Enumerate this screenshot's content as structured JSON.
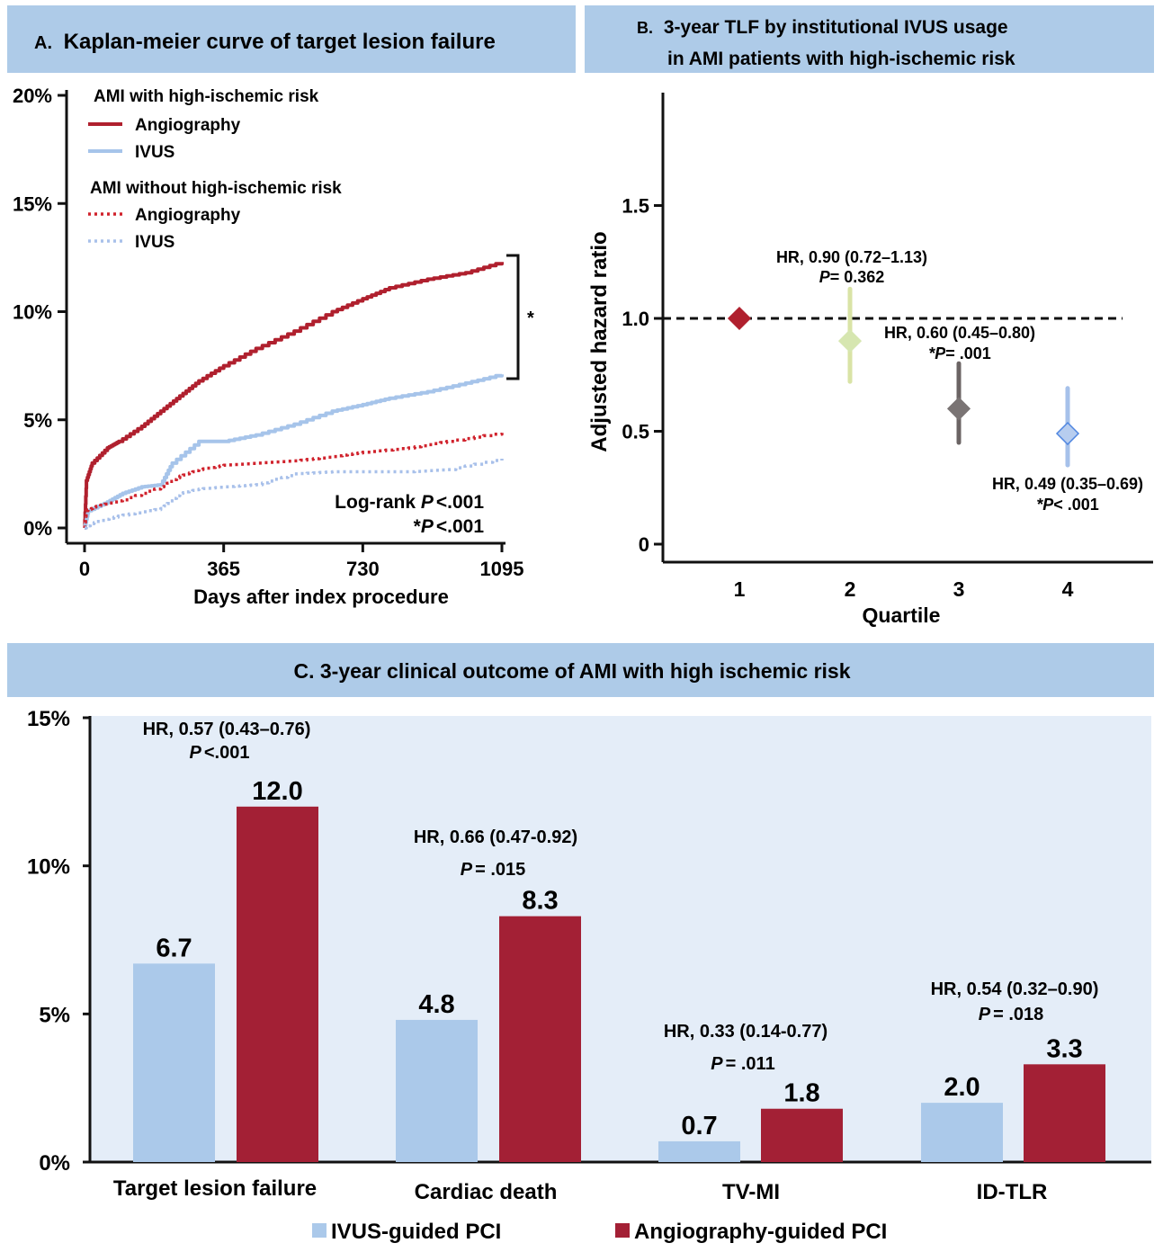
{
  "panel_a": {
    "header": "Kaplan-meier curve of target lesion failure",
    "header_letter": "A.",
    "colors": {
      "header_bg": "#aecbe8",
      "angio": "#b0202e",
      "ivus": "#a6c4ea",
      "angio_dotted": "#d0222c",
      "ivus_dotted": "#a8c0ea"
    },
    "legend": {
      "group1_title": "AMI with high-ischemic risk",
      "group1_items": [
        "Angiography",
        "IVUS"
      ],
      "group2_title": "AMI without high-ischemic risk",
      "group2_items": [
        "Angiography",
        "IVUS"
      ]
    },
    "logrank_label": "Log-rank ",
    "logrank_p": "P",
    "logrank_value": "<.001",
    "star_prefix": "*",
    "star_p": "P",
    "star_value": "<.001",
    "bracket_label": "*"
  },
  "panel_b": {
    "header_letter": "B.",
    "header_line1": "3-year TLF by institutional IVUS usage",
    "header_line2": "in AMI patients with high-ischemic risk",
    "annotations": [
      {
        "hr": "HR, 0.90 (0.72–1.13)",
        "p_label": "P",
        "p_value": "= 0.362"
      },
      {
        "hr": "HR, 0.60 (0.45–0.80)",
        "p_label": "*P",
        "p_value": "= .001"
      },
      {
        "hr": "HR, 0.49 (0.35–0.69)",
        "p_label": "*P",
        "p_value": "< .001"
      }
    ],
    "marker_colors": [
      "#b0202e",
      "#d6e6b0",
      "#7a7474",
      "#b7cdef"
    ],
    "whisker_colors": [
      "#b0202e",
      "#d9e3a6",
      "#6b6464",
      "#a6c1ea"
    ]
  },
  "panel_c": {
    "header": "C. 3-year clinical outcome of AMI with high ischemic risk",
    "annotations": [
      {
        "hr": "HR, 0.57 (0.43–0.76)",
        "p_label": "P",
        "p_value": "<.001"
      },
      {
        "hr": "HR, 0.66 (0.47-0.92)",
        "p_label": "P",
        "p_value": "= .015"
      },
      {
        "hr": "HR, 0.33 (0.14-0.77)",
        "p_label": "P",
        "p_value": "= .011"
      },
      {
        "hr": "HR, 0.54 (0.32–0.90)",
        "p_label": "P",
        "p_value": "= .018"
      }
    ],
    "legend": [
      "IVUS-guided PCI",
      "Angiography-guided PCI"
    ],
    "colors": {
      "plot_bg": "#e4edf8",
      "ivus": "#abc9ea",
      "angio": "#a32035"
    }
  },
  "chart_data": [
    {
      "type": "line",
      "xlabel": "Days after index procedure",
      "ylabel": "",
      "xlim": [
        0,
        1095
      ],
      "ylim": [
        0,
        20
      ],
      "x_ticks": [
        "0",
        "365",
        "730",
        "1095"
      ],
      "y_ticks": [
        "0%",
        "5%",
        "10%",
        "15%",
        "20%"
      ],
      "legend_position": "top-left",
      "series": [
        {
          "name": "Angiography",
          "style": "solid",
          "x": [
            0,
            5,
            20,
            60,
            90,
            150,
            200,
            250,
            300,
            365,
            450,
            550,
            650,
            730,
            800,
            900,
            1000,
            1095
          ],
          "y": [
            0,
            2.2,
            3.0,
            3.7,
            4.0,
            4.7,
            5.4,
            6.1,
            6.8,
            7.5,
            8.3,
            9.1,
            10.0,
            10.6,
            11.1,
            11.5,
            11.8,
            12.3
          ]
        },
        {
          "name": "IVUS",
          "style": "solid",
          "x": [
            0,
            10,
            60,
            100,
            150,
            200,
            230,
            300,
            365,
            450,
            550,
            650,
            730,
            800,
            900,
            1000,
            1095
          ],
          "y": [
            0,
            0.8,
            1.2,
            1.6,
            1.9,
            2.0,
            3.0,
            4.0,
            4.0,
            4.3,
            4.8,
            5.4,
            5.7,
            6.0,
            6.3,
            6.7,
            7.1
          ]
        },
        {
          "name": "Angiography",
          "style": "dotted",
          "x": [
            0,
            5,
            30,
            100,
            200,
            250,
            300,
            365,
            450,
            550,
            650,
            730,
            850,
            950,
            1095
          ],
          "y": [
            0,
            0.8,
            1.0,
            1.3,
            1.9,
            2.4,
            2.7,
            2.9,
            3.0,
            3.1,
            3.3,
            3.5,
            3.7,
            4.0,
            4.4
          ]
        },
        {
          "name": "IVUS",
          "style": "dotted",
          "x": [
            0,
            30,
            100,
            200,
            250,
            300,
            365,
            450,
            550,
            650,
            730,
            850,
            950,
            1095
          ],
          "y": [
            0,
            0.3,
            0.6,
            0.9,
            1.6,
            1.8,
            1.9,
            2.0,
            2.5,
            2.6,
            2.6,
            2.6,
            2.7,
            3.2
          ]
        }
      ]
    },
    {
      "type": "scatter",
      "xlabel": "Quartile",
      "ylabel": "Adjusted hazard ratio",
      "categories": [
        "1",
        "2",
        "3",
        "4"
      ],
      "y_ticks": [
        "0",
        "0.5",
        "1.0",
        "1.5"
      ],
      "ylim": [
        0,
        2.0
      ],
      "reference_line": 1.0,
      "points": [
        {
          "x": "1",
          "hr": 1.0,
          "lo": 1.0,
          "hi": 1.0
        },
        {
          "x": "2",
          "hr": 0.9,
          "lo": 0.72,
          "hi": 1.13
        },
        {
          "x": "3",
          "hr": 0.6,
          "lo": 0.45,
          "hi": 0.8
        },
        {
          "x": "4",
          "hr": 0.49,
          "lo": 0.35,
          "hi": 0.69
        }
      ]
    },
    {
      "type": "bar",
      "categories": [
        "Target lesion failure",
        "Cardiac death",
        "TV-MI",
        "ID-TLR"
      ],
      "ylim": [
        0,
        15
      ],
      "y_ticks": [
        "0%",
        "5%",
        "10%",
        "15%"
      ],
      "legend_position": "bottom",
      "series": [
        {
          "name": "IVUS-guided PCI",
          "values": [
            6.7,
            4.8,
            0.7,
            2.0
          ],
          "labels": [
            "6.7",
            "4.8",
            "0.7",
            "2.0"
          ]
        },
        {
          "name": "Angiography-guided PCI",
          "values": [
            12.0,
            8.3,
            1.8,
            3.3
          ],
          "labels": [
            "12.0",
            "8.3",
            "1.8",
            "3.3"
          ]
        }
      ]
    }
  ]
}
